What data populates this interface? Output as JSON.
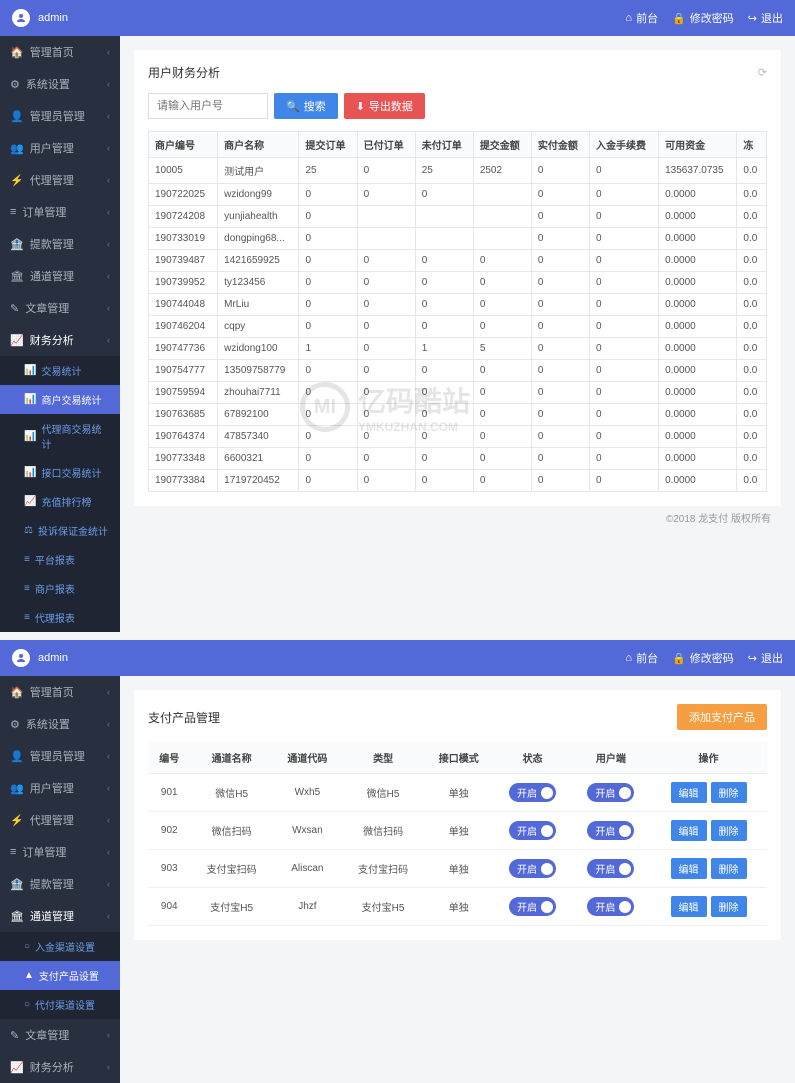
{
  "top": {
    "username": "admin",
    "links": {
      "desk": "前台",
      "pwd": "修改密码",
      "logout": "退出"
    }
  },
  "nav": {
    "home": "管理首页",
    "sys": "系统设置",
    "admin": "管理员管理",
    "user": "用户管理",
    "agent": "代理管理",
    "order": "订单管理",
    "withdraw": "提款管理",
    "channel": "通道管理",
    "article": "文章管理",
    "finance": "财务分析"
  },
  "sub_finance": {
    "s1": "交易统计",
    "s2": "商户交易统计",
    "s3": "代理商交易统计",
    "s4": "接口交易统计",
    "s5": "充值排行榜",
    "s6": "投诉保证金统计",
    "s7": "平台报表",
    "s8": "商户报表",
    "s9": "代理报表"
  },
  "sub_channel": {
    "c1": "入金渠道设置",
    "c2": "支付产品设置",
    "c3": "代付渠道设置"
  },
  "panel1": {
    "title": "用户财务分析",
    "placeholder": "请输入用户号",
    "btn_search": "搜索",
    "btn_export": "导出数据",
    "cols": [
      "商户编号",
      "商户名称",
      "提交订单",
      "已付订单",
      "未付订单",
      "提交金额",
      "实付金额",
      "入金手续费",
      "可用资金",
      "冻"
    ],
    "rows": [
      [
        "10005",
        "测试用户",
        "25",
        "0",
        "25",
        "2502",
        "0",
        "0",
        "135637.0735",
        "0.0"
      ],
      [
        "190722025",
        "wzidong99",
        "0",
        "0",
        "0",
        "",
        "0",
        "0",
        "0.0000",
        "0.0"
      ],
      [
        "190724208",
        "yunjiahealth",
        "0",
        "",
        "",
        "",
        "0",
        "0",
        "0.0000",
        "0.0"
      ],
      [
        "190733019",
        "dongping68...",
        "0",
        "",
        "",
        "",
        "0",
        "0",
        "0.0000",
        "0.0"
      ],
      [
        "190739487",
        "1421659925",
        "0",
        "0",
        "0",
        "0",
        "0",
        "0",
        "0.0000",
        "0.0"
      ],
      [
        "190739952",
        "ty123456",
        "0",
        "0",
        "0",
        "0",
        "0",
        "0",
        "0.0000",
        "0.0"
      ],
      [
        "190744048",
        "MrLiu",
        "0",
        "0",
        "0",
        "0",
        "0",
        "0",
        "0.0000",
        "0.0"
      ],
      [
        "190746204",
        "cqpy",
        "0",
        "0",
        "0",
        "0",
        "0",
        "0",
        "0.0000",
        "0.0"
      ],
      [
        "190747736",
        "wzidong100",
        "1",
        "0",
        "1",
        "5",
        "0",
        "0",
        "0.0000",
        "0.0"
      ],
      [
        "190754777",
        "13509758779",
        "0",
        "0",
        "0",
        "0",
        "0",
        "0",
        "0.0000",
        "0.0"
      ],
      [
        "190759594",
        "zhouhai7711",
        "0",
        "0",
        "0",
        "0",
        "0",
        "0",
        "0.0000",
        "0.0"
      ],
      [
        "190763685",
        "67892100",
        "0",
        "0",
        "0",
        "0",
        "0",
        "0",
        "0.0000",
        "0.0"
      ],
      [
        "190764374",
        "47857340",
        "0",
        "0",
        "0",
        "0",
        "0",
        "0",
        "0.0000",
        "0.0"
      ],
      [
        "190773348",
        "6600321",
        "0",
        "0",
        "0",
        "0",
        "0",
        "0",
        "0.0000",
        "0.0"
      ],
      [
        "190773384",
        "1719720452",
        "0",
        "0",
        "0",
        "0",
        "0",
        "0",
        "0.0000",
        "0.0"
      ]
    ],
    "copyright": "©2018 龙支付 版权所有"
  },
  "panel2": {
    "title": "支付产品管理",
    "btn_add": "添加支付产品",
    "cols": [
      "编号",
      "通道名称",
      "通道代码",
      "类型",
      "接口模式",
      "状态",
      "用户端",
      "操作"
    ],
    "toggle_on": "开启",
    "btn_edit": "编辑",
    "btn_del": "删除",
    "rows": [
      [
        "901",
        "微信H5",
        "Wxh5",
        "微信H5",
        "单独"
      ],
      [
        "902",
        "微信扫码",
        "Wxsan",
        "微信扫码",
        "单独"
      ],
      [
        "903",
        "支付宝扫码",
        "Aliscan",
        "支付宝扫码",
        "单独"
      ],
      [
        "904",
        "支付宝H5",
        "Jhzf",
        "支付宝H5",
        "单独"
      ]
    ]
  },
  "watermark": {
    "t1": "亿码酷站",
    "t2": "YMKUZHAN.COM"
  }
}
